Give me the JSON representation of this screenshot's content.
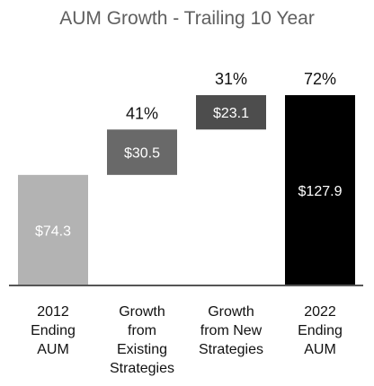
{
  "chart_data": {
    "type": "bar",
    "subtype": "waterfall",
    "title": "AUM Growth - Trailing 10 Year",
    "categories": [
      [
        "2012",
        "Ending",
        "AUM"
      ],
      [
        "Growth",
        "from",
        "Existing",
        "Strategies"
      ],
      [
        "Growth",
        "from New",
        "Strategies"
      ],
      [
        "2022",
        "Ending",
        "AUM"
      ]
    ],
    "bars": [
      {
        "base": 0,
        "value": 74.3,
        "label": "$74.3",
        "pct": "",
        "color": "#b3b3b3"
      },
      {
        "base": 74.3,
        "value": 30.5,
        "label": "$30.5",
        "pct": "41%",
        "color": "#696969"
      },
      {
        "base": 104.8,
        "value": 23.1,
        "label": "$23.1",
        "pct": "31%",
        "color": "#4d4d4d"
      },
      {
        "base": 0,
        "value": 127.9,
        "label": "$127.9",
        "pct": "72%",
        "color": "#000000"
      }
    ],
    "ylim": [
      0,
      127.9
    ],
    "axis_color": "#555555",
    "grid": false,
    "legend": "none"
  }
}
